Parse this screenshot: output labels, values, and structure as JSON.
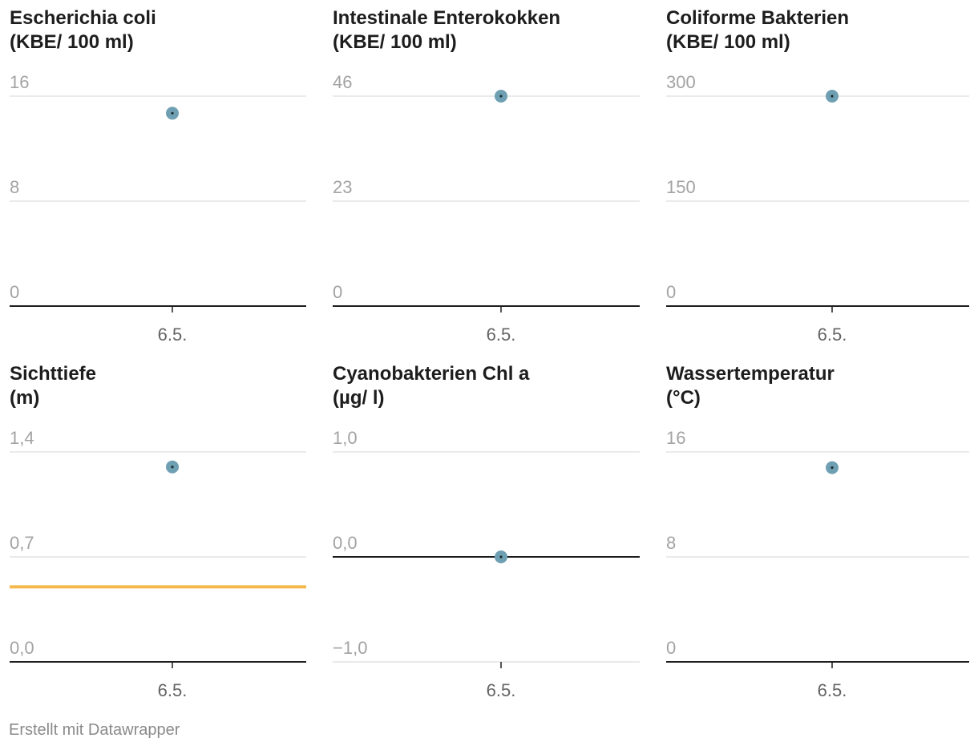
{
  "chart_data": [
    {
      "type": "scatter",
      "title_lines": [
        "Escherichia coli",
        "(KBE/ 100 ml)"
      ],
      "categories": [
        "6.5."
      ],
      "values": [
        14.7
      ],
      "yticks": [
        "16",
        "8",
        "0"
      ],
      "ylim": [
        0,
        16
      ],
      "grid": true
    },
    {
      "type": "scatter",
      "title_lines": [
        "Intestinale Enterokokken",
        "(KBE/ 100 ml)"
      ],
      "categories": [
        "6.5."
      ],
      "values": [
        46
      ],
      "yticks": [
        "46",
        "23",
        "0"
      ],
      "ylim": [
        0,
        46
      ],
      "grid": true
    },
    {
      "type": "scatter",
      "title_lines": [
        "Coliforme Bakterien",
        "(KBE/ 100 ml)"
      ],
      "categories": [
        "6.5."
      ],
      "values": [
        300
      ],
      "yticks": [
        "300",
        "150",
        "0"
      ],
      "ylim": [
        0,
        300
      ],
      "grid": true
    },
    {
      "type": "scatter",
      "title_lines": [
        "Sichttiefe",
        "(m)"
      ],
      "categories": [
        "6.5."
      ],
      "values": [
        1.3
      ],
      "yticks": [
        "1,4",
        "0,7",
        "0,0"
      ],
      "ylim": [
        0,
        1.4
      ],
      "grid": true,
      "reference_line": {
        "value": 0.5,
        "color": "#f5b84f"
      }
    },
    {
      "type": "scatter",
      "title_lines": [
        "Cyanobakterien Chl a",
        "(µg/ l)"
      ],
      "categories": [
        "6.5."
      ],
      "values": [
        0
      ],
      "yticks": [
        "1,0",
        "0,0",
        "−1,0"
      ],
      "ylim": [
        -1,
        1
      ],
      "grid": true
    },
    {
      "type": "scatter",
      "title_lines": [
        "Wassertemperatur",
        "(°C)"
      ],
      "categories": [
        "6.5."
      ],
      "values": [
        14.8
      ],
      "yticks": [
        "16",
        "8",
        "0"
      ],
      "ylim": [
        0,
        16
      ],
      "grid": true
    }
  ],
  "colors": {
    "point": "#6f9fb2",
    "point_center": "#1d2d33",
    "grid": "#e3e3e3",
    "baseline": "#1d1d1d"
  },
  "footer": {
    "credit": "Erstellt mit Datawrapper"
  }
}
